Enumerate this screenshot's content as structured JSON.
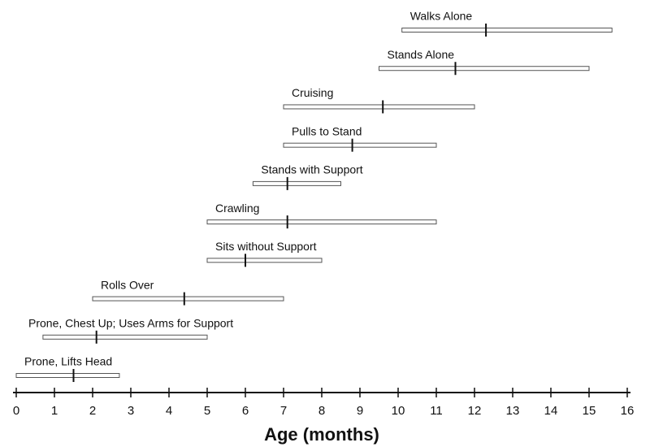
{
  "chart_data": {
    "type": "range",
    "categories": [
      "Prone, Lifts Head",
      "Prone, Chest Up; Uses Arms for Support",
      "Rolls Over",
      "Sits without Support",
      "Crawling",
      "Stands with Support",
      "Pulls to Stand",
      "Cruising",
      "Stands Alone",
      "Walks Alone"
    ],
    "low": [
      0,
      0.7,
      2,
      5,
      5,
      6.2,
      7,
      7,
      9.5,
      10.1
    ],
    "median": [
      1.5,
      2.1,
      4.4,
      6,
      7.1,
      7.1,
      8.8,
      9.6,
      11.5,
      12.3
    ],
    "high": [
      2.7,
      5,
      7,
      8,
      11,
      8.5,
      11,
      12,
      15,
      15.6
    ],
    "xlabel": "Age (months)",
    "xlim": [
      0,
      16
    ],
    "xticks": [
      0,
      1,
      2,
      3,
      4,
      5,
      6,
      7,
      8,
      9,
      10,
      11,
      12,
      13,
      14,
      15,
      16
    ],
    "color": "#ffffff"
  }
}
